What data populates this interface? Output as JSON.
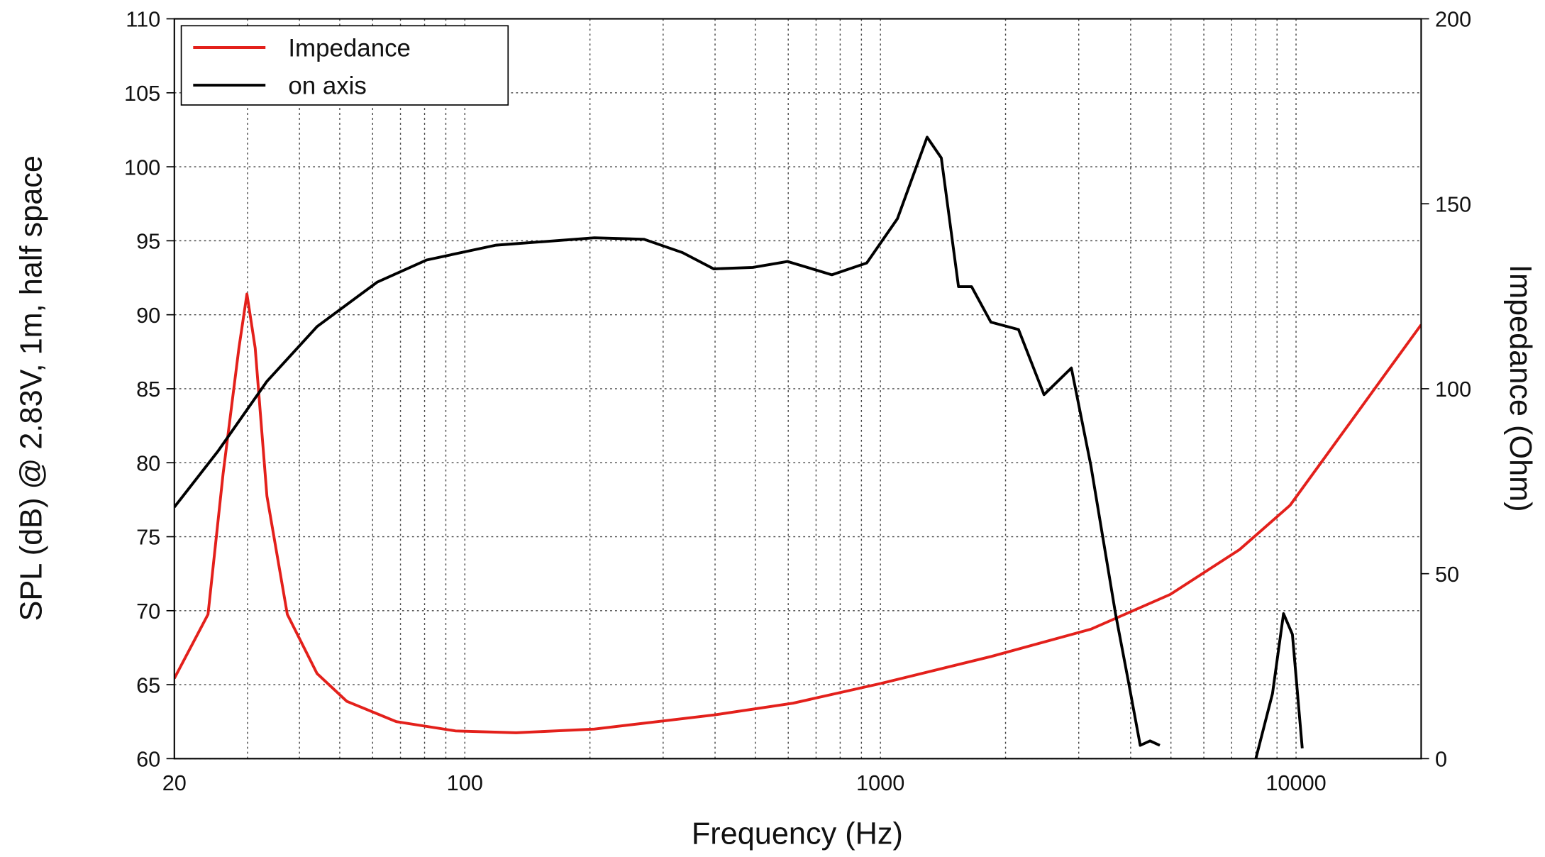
{
  "chart_data": {
    "type": "line",
    "x_label": "Frequency (Hz)",
    "y_label": "SPL (dB) @ 2.83V, 1m, half space",
    "y2_label": "Impedance (Ohm)",
    "xscale": "log",
    "xlim": [
      20,
      20000
    ],
    "xticks": [
      20,
      100,
      1000,
      10000
    ],
    "xminor": [
      30,
      40,
      50,
      60,
      70,
      80,
      90,
      200,
      300,
      400,
      500,
      600,
      700,
      800,
      900,
      2000,
      3000,
      4000,
      5000,
      6000,
      7000,
      8000,
      9000
    ],
    "ylim": [
      60,
      110
    ],
    "yticks": [
      60,
      65,
      70,
      75,
      80,
      85,
      90,
      95,
      100,
      105,
      110
    ],
    "y2lim": [
      0,
      200
    ],
    "y2ticks": [
      0,
      50,
      100,
      150,
      200
    ],
    "grid": true,
    "legend": "upper left",
    "series": [
      {
        "name": "Impedance",
        "color": "#e3201b",
        "axis": "y2",
        "x": [
          20,
          24.1,
          26.2,
          28.6,
          29.9,
          31.3,
          33.4,
          37.4,
          44.1,
          52,
          68.4,
          95,
          132.8,
          205,
          397,
          616,
          1000,
          1844,
          3209,
          4981,
          7310,
          9676,
          12800,
          16900,
          20000
        ],
        "values": [
          21.7,
          39,
          77,
          111,
          125.6,
          111,
          71,
          39,
          23,
          15.5,
          10,
          7.5,
          7,
          8,
          11.8,
          15,
          20.3,
          27.6,
          35,
          44.4,
          56.5,
          68.5,
          87.3,
          106,
          117.3
        ]
      },
      {
        "name": "on axis",
        "color": "#000000",
        "axis": "y",
        "x": [
          20,
          25.5,
          33.4,
          44.1,
          61.5,
          80.9,
          118.7,
          205,
          270,
          334,
          397,
          493,
          598,
          764,
          927,
          1099,
          1295,
          1401,
          1541,
          1657,
          1844,
          2149,
          2475,
          2880,
          3209,
          3678,
          3951,
          4218,
          4452,
          4701,
          6000,
          8003,
          8777,
          9330,
          9800,
          10350
        ],
        "values": [
          77,
          80.8,
          85.5,
          89.2,
          92.2,
          93.7,
          94.7,
          95.2,
          95.1,
          94.2,
          93.1,
          93.2,
          93.6,
          92.7,
          93.5,
          96.5,
          102,
          100.6,
          91.9,
          91.9,
          89.5,
          89,
          84.6,
          86.4,
          79.8,
          69.8,
          65.2,
          60.9,
          61.2,
          60.9,
          null,
          60,
          64.4,
          69.8,
          68.4,
          60.7
        ]
      }
    ]
  }
}
